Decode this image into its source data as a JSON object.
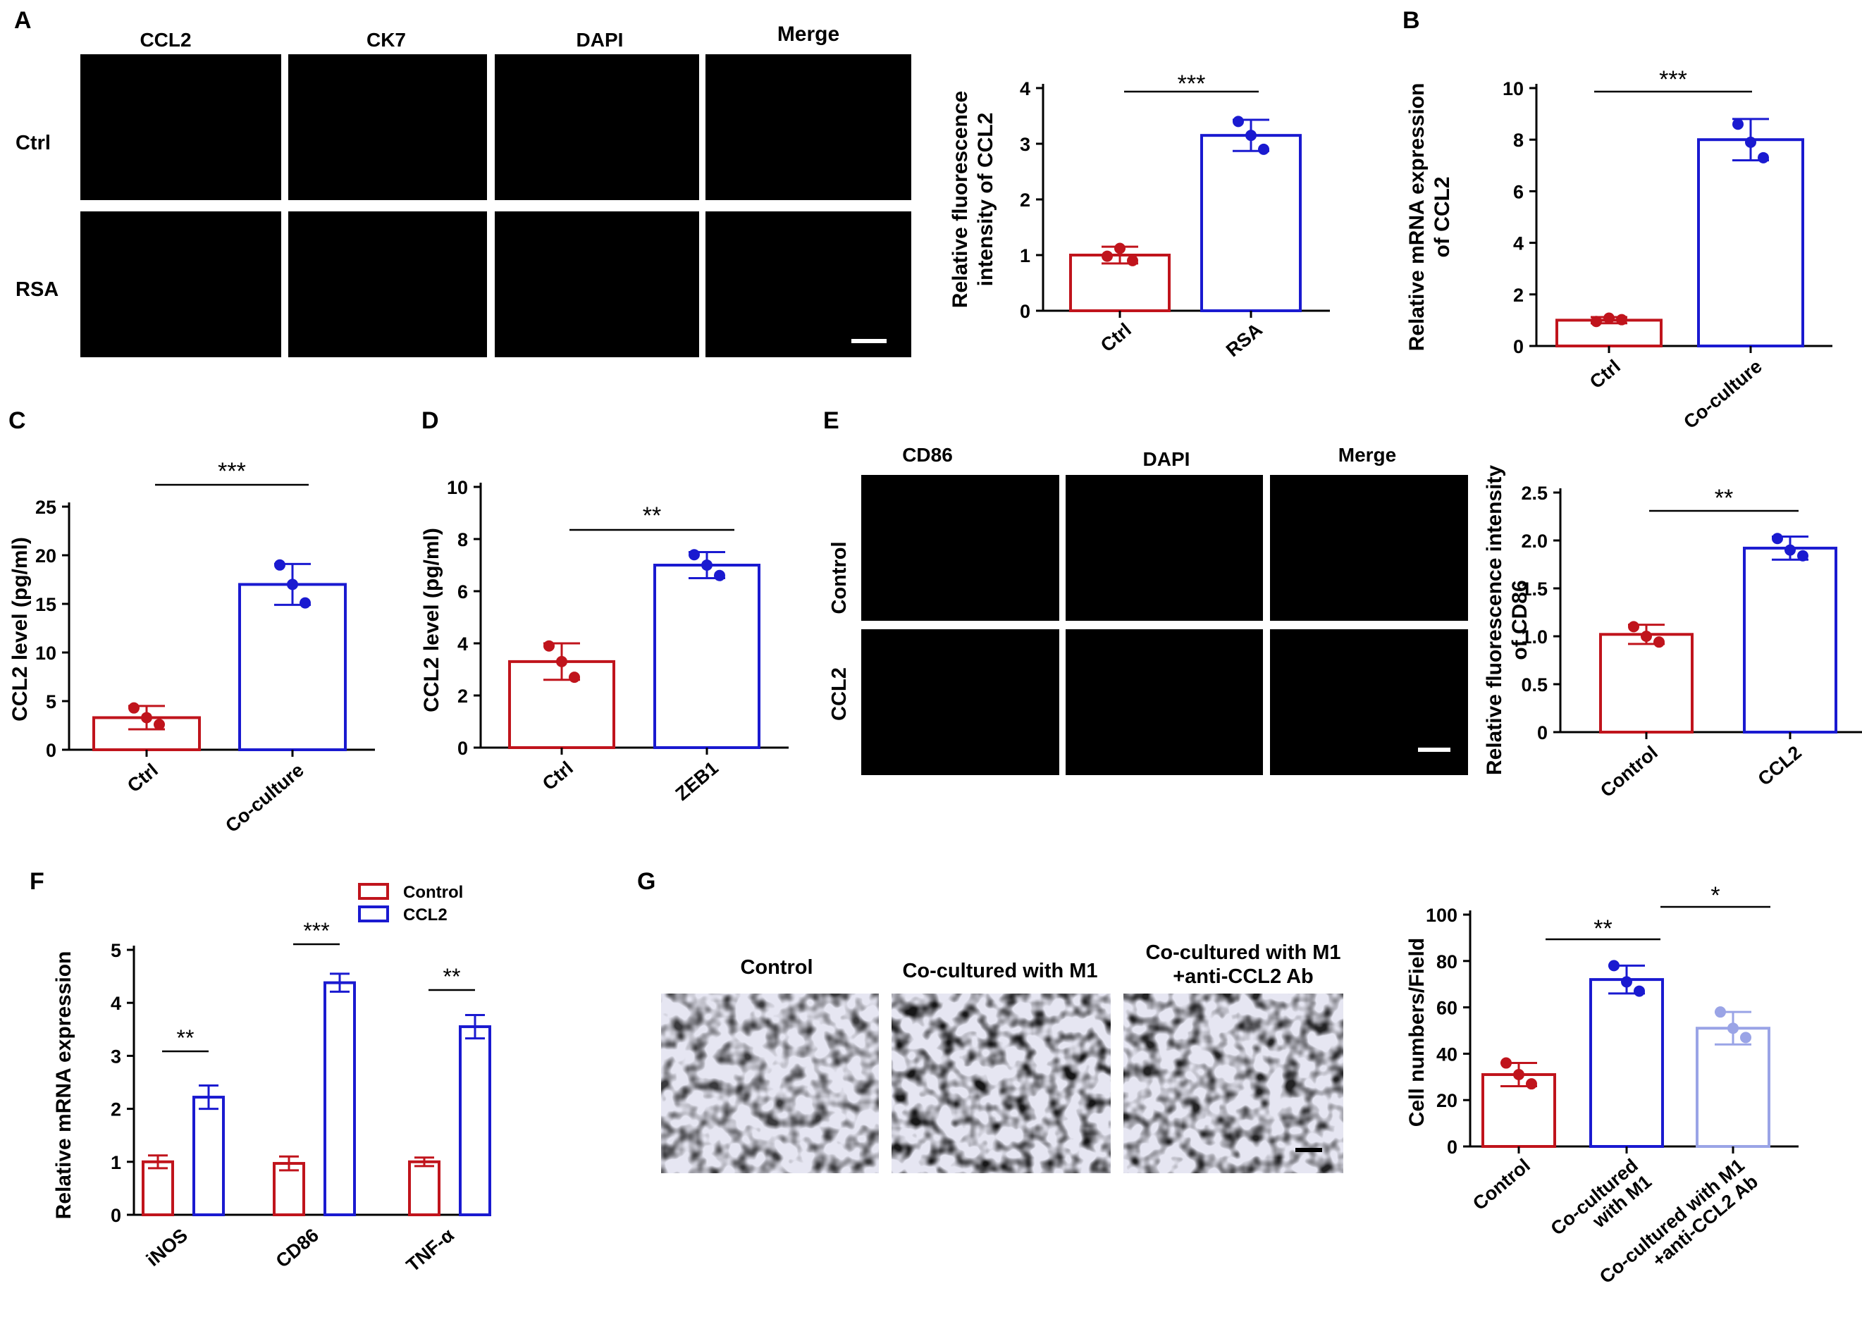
{
  "figure": {
    "panel_letters": [
      "A",
      "B",
      "C",
      "D",
      "E",
      "F",
      "G"
    ],
    "panel_A": {
      "column_headers": [
        "CCL2",
        "CK7",
        "DAPI",
        "Merge"
      ],
      "row_labels": [
        "Ctrl",
        "RSA"
      ],
      "channel_colors": [
        "#e0301e",
        "#2ea82e",
        "#2a3fd8",
        "#c9702a"
      ]
    },
    "panel_E": {
      "column_headers": [
        "CD86",
        "DAPI",
        "Merge"
      ],
      "row_labels": [
        "Control",
        "CCL2"
      ],
      "channel_colors": [
        "#e02020",
        "#2a3fd8",
        "#b0306a"
      ]
    },
    "panel_G": {
      "column_headers": [
        "Control",
        "Co-cultured with M1",
        "Co-cultured with M1\n+anti-CCL2 Ab"
      ],
      "stain_color": "#3a3aa0"
    },
    "colors": {
      "ctrl": "#c0141c",
      "treat": "#1a1ad0",
      "treat_light": "#9aa4e6"
    }
  },
  "chart_data": [
    {
      "id": "A",
      "type": "bar",
      "categories": [
        "Ctrl",
        "RSA"
      ],
      "values": [
        1.0,
        3.15
      ],
      "errors": [
        0.15,
        0.28
      ],
      "points": [
        [
          0.98,
          1.12,
          0.9
        ],
        [
          3.4,
          3.15,
          2.9
        ]
      ],
      "ylabel": "Relative fluorescence\nintensity of CCL2",
      "xlabel": "",
      "ylim": [
        0,
        4
      ],
      "yticks": [
        "0",
        "1",
        "2",
        "3",
        "4"
      ],
      "significance": [
        {
          "pair": [
            0,
            1
          ],
          "label": "***"
        }
      ]
    },
    {
      "id": "B",
      "type": "bar",
      "categories": [
        "Ctrl",
        "Co-culture"
      ],
      "values": [
        1.0,
        8.0
      ],
      "errors": [
        0.12,
        0.8
      ],
      "points": [
        [
          0.95,
          1.08,
          1.02
        ],
        [
          8.6,
          7.9,
          7.3
        ]
      ],
      "ylabel": "Relative mRNA expression\nof CCL2",
      "xlabel": "",
      "ylim": [
        0,
        10
      ],
      "yticks": [
        "0",
        "2",
        "4",
        "6",
        "8",
        "10"
      ],
      "significance": [
        {
          "pair": [
            0,
            1
          ],
          "label": "***"
        }
      ]
    },
    {
      "id": "C",
      "type": "bar",
      "categories": [
        "Ctrl",
        "Co-culture"
      ],
      "values": [
        3.3,
        17.0
      ],
      "errors": [
        1.2,
        2.1
      ],
      "points": [
        [
          4.3,
          3.3,
          2.6
        ],
        [
          19.0,
          17.0,
          15.1
        ]
      ],
      "ylabel": "CCL2 level (pg/ml)",
      "xlabel": "",
      "ylim": [
        0,
        25
      ],
      "yticks": [
        "0",
        "5",
        "10",
        "15",
        "20",
        "25"
      ],
      "significance": [
        {
          "pair": [
            0,
            1
          ],
          "label": "***"
        }
      ]
    },
    {
      "id": "D",
      "type": "bar",
      "categories": [
        "Ctrl",
        "ZEB1"
      ],
      "values": [
        3.3,
        7.0
      ],
      "errors": [
        0.7,
        0.5
      ],
      "points": [
        [
          3.9,
          3.3,
          2.7
        ],
        [
          7.4,
          7.0,
          6.6
        ]
      ],
      "ylabel": "CCL2 level (pg/ml)",
      "xlabel": "",
      "ylim": [
        0,
        10
      ],
      "yticks": [
        "0",
        "2",
        "4",
        "6",
        "8",
        "10"
      ],
      "significance": [
        {
          "pair": [
            0,
            1
          ],
          "label": "**"
        }
      ]
    },
    {
      "id": "E",
      "type": "bar",
      "categories": [
        "Control",
        "CCL2"
      ],
      "values": [
        1.02,
        1.92
      ],
      "errors": [
        0.1,
        0.12
      ],
      "points": [
        [
          1.1,
          1.0,
          0.94
        ],
        [
          2.02,
          1.9,
          1.84
        ]
      ],
      "ylabel": "Relative fluorescence intensity\nof CD86",
      "xlabel": "",
      "ylim": [
        0,
        2.5
      ],
      "yticks": [
        "0",
        "0.5",
        "1.0",
        "1.5",
        "2.0",
        "2.5"
      ],
      "significance": [
        {
          "pair": [
            0,
            1
          ],
          "label": "**"
        }
      ]
    },
    {
      "id": "F",
      "type": "bar",
      "categories": [
        "iNOS",
        "CD86",
        "TNF-α"
      ],
      "series": [
        {
          "name": "Control",
          "values": [
            1.0,
            0.97,
            1.0
          ],
          "errors": [
            0.12,
            0.13,
            0.08
          ]
        },
        {
          "name": "CCL2",
          "values": [
            2.22,
            4.38,
            3.55
          ],
          "errors": [
            0.22,
            0.17,
            0.22
          ]
        }
      ],
      "ylabel": "Relative mRNA expression",
      "xlabel": "",
      "ylim": [
        0,
        5
      ],
      "yticks": [
        "0",
        "1",
        "2",
        "3",
        "4",
        "5"
      ],
      "legend": "top-left",
      "significance": [
        {
          "group": 0,
          "label": "**"
        },
        {
          "group": 1,
          "label": "***"
        },
        {
          "group": 2,
          "label": "**"
        }
      ]
    },
    {
      "id": "G",
      "type": "bar",
      "categories": [
        "Control",
        "Co-cultured\nwith M1",
        "Co-cultured with M1\n+anti-CCL2 Ab"
      ],
      "values": [
        31,
        72,
        51
      ],
      "errors": [
        5,
        6,
        7
      ],
      "points": [
        [
          36,
          31,
          27
        ],
        [
          78,
          71,
          67
        ],
        [
          58,
          51,
          47
        ]
      ],
      "ylabel": "Cell numbers/Field",
      "xlabel": "",
      "ylim": [
        0,
        100
      ],
      "yticks": [
        "0",
        "20",
        "40",
        "60",
        "80",
        "100"
      ],
      "significance": [
        {
          "pair": [
            0,
            1
          ],
          "label": "**"
        },
        {
          "pair": [
            1,
            2
          ],
          "label": "*"
        }
      ]
    }
  ]
}
